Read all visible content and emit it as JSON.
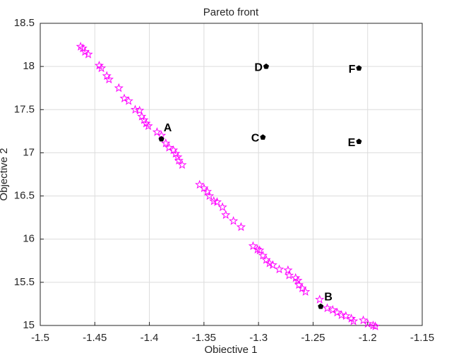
{
  "chart_data": {
    "type": "scatter",
    "title": "Pareto front",
    "x_label": "Objective 1",
    "y_label": "Objective 2",
    "xlim": [
      -1.5,
      -1.15
    ],
    "xticks": [
      -1.5,
      -1.45,
      -1.4,
      -1.35,
      -1.3,
      -1.25,
      -1.2,
      -1.15
    ],
    "ylim": [
      15,
      18.5
    ],
    "yticks": [
      15,
      15.5,
      16,
      16.5,
      17,
      17.5,
      18,
      18.5
    ],
    "grid": true,
    "series": [
      {
        "color": "#ff00ff",
        "marker": "star",
        "x": [
          -1.463,
          -1.461,
          -1.459,
          -1.456,
          -1.446,
          -1.444,
          -1.439,
          -1.437,
          -1.428,
          -1.423,
          -1.419,
          -1.413,
          -1.409,
          -1.407,
          -1.405,
          -1.403,
          -1.401,
          -1.393,
          -1.389,
          -1.385,
          -1.382,
          -1.378,
          -1.376,
          -1.374,
          -1.373,
          -1.37,
          -1.354,
          -1.35,
          -1.347,
          -1.345,
          -1.341,
          -1.338,
          -1.333,
          -1.33,
          -1.323,
          -1.316,
          -1.305,
          -1.301,
          -1.299,
          -1.296,
          -1.293,
          -1.29,
          -1.287,
          -1.281,
          -1.273,
          -1.272,
          -1.266,
          -1.264,
          -1.263,
          -1.26,
          -1.257,
          -1.244,
          -1.237,
          -1.232,
          -1.228,
          -1.224,
          -1.22,
          -1.215,
          -1.213,
          -1.204,
          -1.2,
          -1.195,
          -1.193
        ],
        "values": [
          18.23,
          18.21,
          18.17,
          18.14,
          18.01,
          17.98,
          17.89,
          17.85,
          17.75,
          17.63,
          17.6,
          17.5,
          17.49,
          17.42,
          17.38,
          17.34,
          17.31,
          17.24,
          17.2,
          17.11,
          17.06,
          17.03,
          16.99,
          16.95,
          16.91,
          16.86,
          16.63,
          16.59,
          16.55,
          16.5,
          16.44,
          16.43,
          16.37,
          16.28,
          16.21,
          16.14,
          15.92,
          15.88,
          15.87,
          15.81,
          15.76,
          15.72,
          15.7,
          15.65,
          15.64,
          15.58,
          15.55,
          15.52,
          15.47,
          15.43,
          15.39,
          15.3,
          15.2,
          15.18,
          15.15,
          15.12,
          15.11,
          15.08,
          15.05,
          15.06,
          15.02,
          15.0,
          14.99
        ]
      }
    ],
    "annotations": [
      {
        "text": "A",
        "x": -1.389,
        "y": 17.16,
        "color": "#000000",
        "side": "above"
      },
      {
        "text": "B",
        "x": -1.243,
        "y": 15.22,
        "color": "#000000",
        "side": "right"
      },
      {
        "text": "C",
        "x": -1.296,
        "y": 17.18,
        "color": "#000000",
        "side": "left"
      },
      {
        "text": "D",
        "x": -1.293,
        "y": 18.0,
        "color": "#000000",
        "side": "left"
      },
      {
        "text": "E",
        "x": -1.208,
        "y": 17.13,
        "color": "#000000",
        "side": "left"
      },
      {
        "text": "F",
        "x": -1.208,
        "y": 17.98,
        "color": "#000000",
        "side": "left"
      }
    ]
  }
}
